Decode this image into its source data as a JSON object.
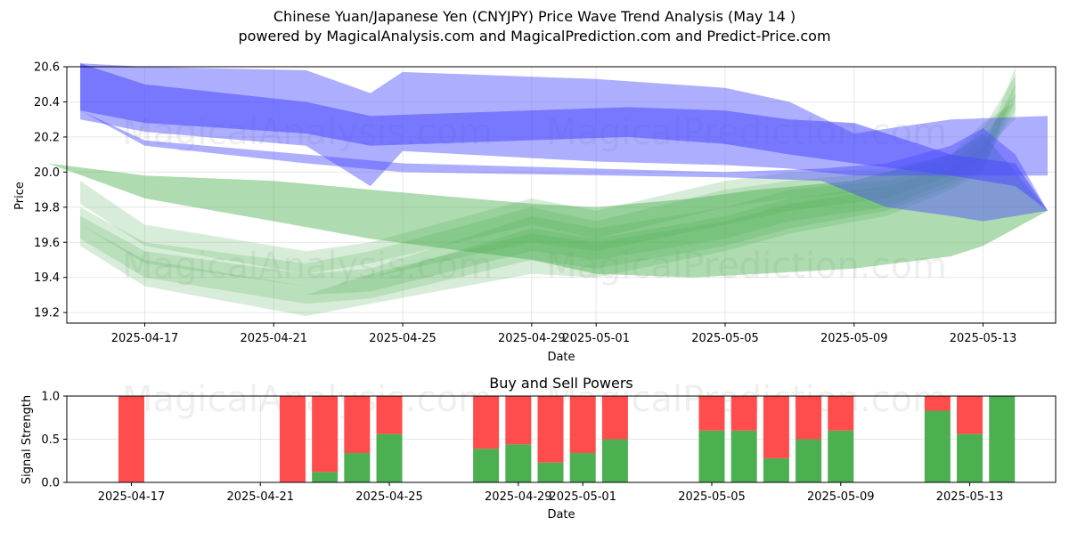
{
  "chart_data": [
    {
      "type": "area",
      "title": "Chinese Yuan/Japanese Yen (CNYJPY) Price Wave Trend Analysis (May 14 )",
      "subtitle": "powered by MagicalAnalysis.com and MagicalPrediction.com and Predict-Price.com",
      "xlabel": "Date",
      "ylabel": "Price",
      "ylim": [
        19.14,
        20.6
      ],
      "xlim": [
        "2025-04-14T14:00",
        "2025-05-15T06:00"
      ],
      "x_ticks": [
        "2025-04-17",
        "2025-04-21",
        "2025-04-25",
        "2025-04-29",
        "2025-05-01",
        "2025-05-05",
        "2025-05-09",
        "2025-05-13"
      ],
      "y_ticks": [
        19.2,
        19.4,
        19.6,
        19.8,
        20.0,
        20.2,
        20.4,
        20.6
      ],
      "grid": true,
      "watermarks": [
        "MagicalAnalysis.com",
        "MagicalPrediction.com"
      ],
      "colors": {
        "blue": "#4c4cff",
        "green": "#4caf50"
      },
      "blue_bands": [
        {
          "x": [
            "2025-04-15",
            "2025-04-17",
            "2025-04-22",
            "2025-04-24",
            "2025-04-25",
            "2025-05-01",
            "2025-05-05",
            "2025-05-07",
            "2025-05-09",
            "2025-05-12",
            "2025-05-15"
          ],
          "upper": [
            20.62,
            20.6,
            20.58,
            20.45,
            20.57,
            20.53,
            20.48,
            20.4,
            20.22,
            20.3,
            20.32
          ],
          "lower": [
            20.3,
            20.23,
            20.15,
            19.92,
            20.12,
            20.06,
            20.04,
            20.02,
            19.98,
            19.98,
            19.98
          ]
        },
        {
          "x": [
            "2025-04-15",
            "2025-04-17",
            "2025-04-22",
            "2025-04-24",
            "2025-05-02",
            "2025-05-05",
            "2025-05-07",
            "2025-05-09",
            "2025-05-12",
            "2025-05-14",
            "2025-05-15"
          ],
          "upper": [
            20.62,
            20.5,
            20.4,
            20.32,
            20.37,
            20.35,
            20.3,
            20.28,
            20.1,
            20.05,
            19.78
          ],
          "lower": [
            20.35,
            20.28,
            20.22,
            20.15,
            20.2,
            20.16,
            20.1,
            20.05,
            19.98,
            19.92,
            19.78
          ]
        },
        {
          "x": [
            "2025-04-15",
            "2025-04-17",
            "2025-04-22",
            "2025-04-25",
            "2025-05-05",
            "2025-05-08",
            "2025-05-10",
            "2025-05-12",
            "2025-05-13",
            "2025-05-14",
            "2025-05-15"
          ],
          "upper": [
            20.35,
            20.18,
            20.1,
            20.05,
            20.0,
            20.02,
            20.05,
            20.15,
            20.25,
            20.1,
            19.78
          ],
          "lower": [
            20.35,
            20.15,
            20.05,
            20.0,
            19.97,
            19.95,
            19.8,
            19.75,
            19.72,
            19.75,
            19.78
          ]
        }
      ],
      "green_bands": [
        {
          "x": [
            "2025-04-14",
            "2025-04-17",
            "2025-04-21",
            "2025-04-24",
            "2025-04-29",
            "2025-05-01",
            "2025-05-04",
            "2025-05-06",
            "2025-05-09",
            "2025-05-12",
            "2025-05-13",
            "2025-05-15"
          ],
          "upper": [
            20.05,
            19.98,
            19.95,
            19.9,
            19.82,
            19.8,
            19.85,
            19.9,
            19.95,
            20.1,
            20.22,
            19.78
          ],
          "lower": [
            20.05,
            19.85,
            19.72,
            19.62,
            19.5,
            19.42,
            19.4,
            19.42,
            19.45,
            19.52,
            19.58,
            19.78
          ]
        },
        {
          "x": [
            "2025-04-15",
            "2025-04-17",
            "2025-04-22",
            "2025-04-24",
            "2025-04-29",
            "2025-05-01",
            "2025-05-05",
            "2025-05-07",
            "2025-05-10",
            "2025-05-12",
            "2025-05-13",
            "2025-05-14"
          ],
          "upper": [
            19.75,
            19.55,
            19.42,
            19.45,
            19.75,
            19.68,
            19.8,
            19.9,
            19.95,
            20.05,
            20.2,
            20.45
          ],
          "lower": [
            19.68,
            19.45,
            19.3,
            19.32,
            19.55,
            19.5,
            19.62,
            19.72,
            19.8,
            19.95,
            20.05,
            20.35
          ]
        },
        {
          "x": [
            "2025-04-15",
            "2025-04-17",
            "2025-04-22",
            "2025-04-24",
            "2025-04-29",
            "2025-05-01",
            "2025-05-05",
            "2025-05-07",
            "2025-05-10",
            "2025-05-12",
            "2025-05-13",
            "2025-05-14"
          ],
          "upper": [
            19.7,
            19.5,
            19.35,
            19.4,
            19.68,
            19.62,
            19.75,
            19.85,
            19.92,
            20.02,
            20.15,
            20.5
          ],
          "lower": [
            19.62,
            19.4,
            19.25,
            19.28,
            19.5,
            19.45,
            19.58,
            19.68,
            19.78,
            19.92,
            20.02,
            20.4
          ]
        },
        {
          "x": [
            "2025-04-15",
            "2025-04-17",
            "2025-04-22",
            "2025-04-24",
            "2025-04-29",
            "2025-05-01",
            "2025-05-05",
            "2025-05-07",
            "2025-05-10",
            "2025-05-12",
            "2025-05-13",
            "2025-05-14"
          ],
          "upper": [
            19.8,
            19.6,
            19.48,
            19.55,
            19.8,
            19.72,
            19.9,
            19.95,
            20.0,
            20.08,
            20.25,
            20.55
          ],
          "lower": [
            19.7,
            19.48,
            19.35,
            19.4,
            19.6,
            19.55,
            19.7,
            19.78,
            19.85,
            19.98,
            20.08,
            20.42
          ]
        },
        {
          "x": [
            "2025-04-15",
            "2025-04-17",
            "2025-04-22",
            "2025-04-24",
            "2025-04-29",
            "2025-05-01",
            "2025-05-05",
            "2025-05-07",
            "2025-05-10",
            "2025-05-12",
            "2025-05-13",
            "2025-05-14"
          ],
          "upper": [
            19.68,
            19.45,
            19.3,
            19.42,
            19.65,
            19.6,
            19.72,
            19.82,
            19.9,
            20.0,
            20.12,
            20.6
          ],
          "lower": [
            19.58,
            19.35,
            19.18,
            19.25,
            19.42,
            19.4,
            19.55,
            19.65,
            19.75,
            19.9,
            20.0,
            20.48
          ]
        },
        {
          "x": [
            "2025-04-15",
            "2025-04-17",
            "2025-04-22",
            "2025-04-24",
            "2025-04-29",
            "2025-05-01",
            "2025-05-05",
            "2025-05-07",
            "2025-05-10",
            "2025-05-12",
            "2025-05-13",
            "2025-05-14"
          ],
          "upper": [
            19.95,
            19.7,
            19.55,
            19.6,
            19.85,
            19.78,
            19.95,
            20.0,
            20.02,
            20.1,
            20.28,
            20.4
          ],
          "lower": [
            19.82,
            19.58,
            19.42,
            19.48,
            19.7,
            19.62,
            19.8,
            19.85,
            19.9,
            20.0,
            20.12,
            20.3
          ]
        }
      ]
    },
    {
      "type": "bar",
      "title": "Buy and Sell Powers",
      "xlabel": "Date",
      "ylabel": "Signal Strength",
      "ylim": [
        0,
        1.0
      ],
      "x_ticks": [
        "2025-04-17",
        "2025-04-21",
        "2025-04-25",
        "2025-04-29",
        "2025-05-01",
        "2025-05-05",
        "2025-05-09",
        "2025-05-13"
      ],
      "y_ticks": [
        0.0,
        0.5,
        1.0
      ],
      "colors": {
        "buy": "#4caf50",
        "sell": "#ff4c4c"
      },
      "series": [
        {
          "name": "Buy",
          "x": [
            "2025-04-17",
            "2025-04-22",
            "2025-04-23",
            "2025-04-24",
            "2025-04-25",
            "2025-04-28",
            "2025-04-29",
            "2025-04-30",
            "2025-05-01",
            "2025-05-02",
            "2025-05-05",
            "2025-05-06",
            "2025-05-07",
            "2025-05-08",
            "2025-05-09",
            "2025-05-12",
            "2025-05-13",
            "2025-05-14"
          ],
          "values": [
            0.0,
            0.0,
            0.12,
            0.34,
            0.56,
            0.39,
            0.44,
            0.23,
            0.34,
            0.5,
            0.6,
            0.6,
            0.28,
            0.5,
            0.6,
            0.83,
            0.56,
            1.0
          ]
        },
        {
          "name": "Sell",
          "x": [
            "2025-04-17",
            "2025-04-22",
            "2025-04-23",
            "2025-04-24",
            "2025-04-25",
            "2025-04-28",
            "2025-04-29",
            "2025-04-30",
            "2025-05-01",
            "2025-05-02",
            "2025-05-05",
            "2025-05-06",
            "2025-05-07",
            "2025-05-08",
            "2025-05-09",
            "2025-05-12",
            "2025-05-13",
            "2025-05-14"
          ],
          "values": [
            1.0,
            1.0,
            0.88,
            0.66,
            0.44,
            0.61,
            0.56,
            0.77,
            0.66,
            0.5,
            0.4,
            0.4,
            0.72,
            0.5,
            0.4,
            0.17,
            0.44,
            0.0
          ]
        }
      ]
    }
  ]
}
